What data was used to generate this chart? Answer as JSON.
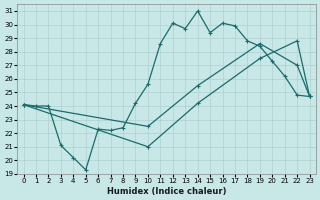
{
  "xlabel": "Humidex (Indice chaleur)",
  "ylabel": "",
  "bg_color": "#c8e8e8",
  "line_color": "#1a6b6b",
  "grid_color": "#b0d0d0",
  "xlim": [
    -0.5,
    23.5
  ],
  "ylim": [
    19,
    31.5
  ],
  "xticks": [
    0,
    1,
    2,
    3,
    4,
    5,
    6,
    7,
    8,
    9,
    10,
    11,
    12,
    13,
    14,
    15,
    16,
    17,
    18,
    19,
    20,
    21,
    22,
    23
  ],
  "yticks": [
    19,
    20,
    21,
    22,
    23,
    24,
    25,
    26,
    27,
    28,
    29,
    30,
    31
  ],
  "line1_x": [
    0,
    1,
    2,
    3,
    4,
    5,
    6,
    7,
    8,
    9,
    10,
    11,
    12,
    13,
    14,
    15,
    16,
    17,
    18,
    19,
    20,
    21,
    22,
    23
  ],
  "line1_y": [
    24.1,
    24.0,
    24.0,
    21.1,
    20.2,
    19.3,
    22.3,
    22.2,
    22.4,
    24.2,
    25.6,
    28.6,
    30.1,
    29.7,
    31.0,
    29.4,
    30.1,
    29.9,
    28.8,
    28.4,
    27.3,
    26.2,
    24.8,
    24.7
  ],
  "line2_x": [
    0,
    10,
    14,
    19,
    22,
    23
  ],
  "line2_y": [
    24.1,
    22.5,
    25.5,
    28.6,
    27.0,
    24.7
  ],
  "line3_x": [
    0,
    10,
    14,
    19,
    22,
    23
  ],
  "line3_y": [
    24.1,
    21.0,
    24.2,
    27.5,
    28.8,
    24.7
  ]
}
